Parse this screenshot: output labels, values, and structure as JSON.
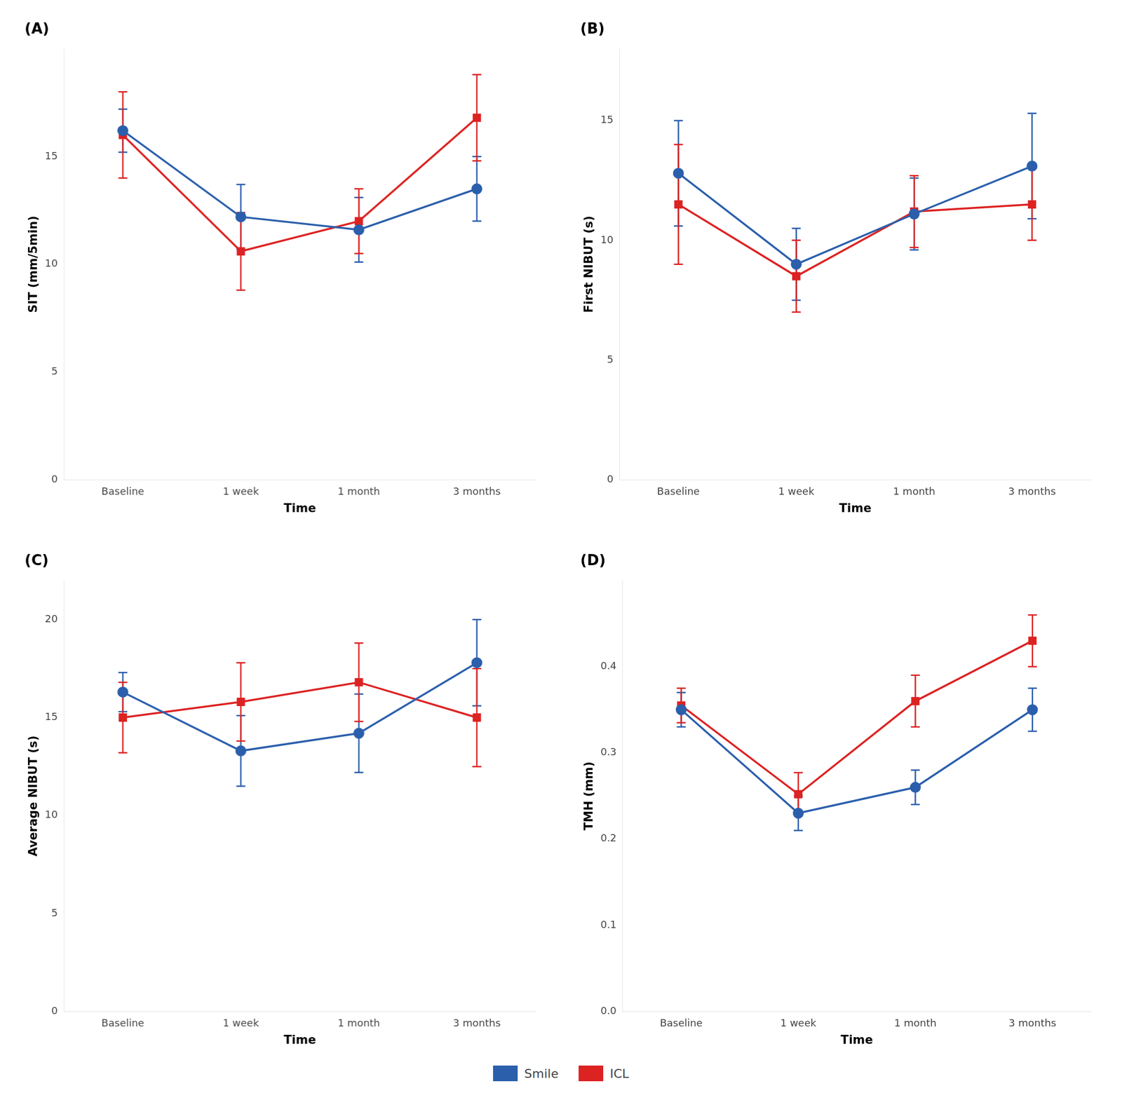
{
  "chart_data": [
    {
      "type": "line",
      "title": "(A)",
      "x_label": "Time",
      "y_label": "SIT (mm/5min)",
      "categories": [
        "Baseline",
        "1 week",
        "1 month",
        "3 months"
      ],
      "series": [
        {
          "name": "Smile",
          "color": "#2B5FAC",
          "marker": "circle",
          "values": [
            16.2,
            12.2,
            11.6,
            13.5
          ],
          "errors": [
            1.0,
            1.5,
            1.5,
            1.5
          ]
        },
        {
          "name": "ICL",
          "color": "#DD2222",
          "marker": "square",
          "values": [
            16.0,
            10.6,
            12.0,
            16.8
          ],
          "errors": [
            2.0,
            1.8,
            1.5,
            2.0
          ]
        }
      ],
      "ylim": [
        0,
        20
      ],
      "yticks": [
        0,
        5,
        10,
        15
      ],
      "grid": false,
      "legend": "bottom"
    },
    {
      "type": "line",
      "title": "(B)",
      "x_label": "Time",
      "y_label": "First NIBUT (s)",
      "categories": [
        "Baseline",
        "1 week",
        "1 month",
        "3 months"
      ],
      "series": [
        {
          "name": "Smile",
          "color": "#2B5FAC",
          "marker": "circle",
          "values": [
            12.8,
            9.0,
            11.1,
            13.1
          ],
          "errors": [
            2.2,
            1.5,
            1.5,
            2.2
          ]
        },
        {
          "name": "ICL",
          "color": "#DD2222",
          "marker": "square",
          "values": [
            11.5,
            8.5,
            11.2,
            11.5
          ],
          "errors": [
            2.5,
            1.5,
            1.5,
            1.5
          ]
        }
      ],
      "ylim": [
        0,
        18
      ],
      "yticks": [
        0,
        5,
        10,
        15
      ],
      "grid": false,
      "legend": "bottom"
    },
    {
      "type": "line",
      "title": "(C)",
      "x_label": "Time",
      "y_label": "Average NIBUT (s)",
      "categories": [
        "Baseline",
        "1 week",
        "1 month",
        "3 months"
      ],
      "series": [
        {
          "name": "Smile",
          "color": "#2B5FAC",
          "marker": "circle",
          "values": [
            16.3,
            13.3,
            14.2,
            17.8
          ],
          "errors": [
            1.0,
            1.8,
            2.0,
            2.2
          ]
        },
        {
          "name": "ICL",
          "color": "#DD2222",
          "marker": "square",
          "values": [
            15.0,
            15.8,
            16.8,
            15.0
          ],
          "errors": [
            1.8,
            2.0,
            2.0,
            2.5
          ]
        }
      ],
      "ylim": [
        0,
        22
      ],
      "yticks": [
        0,
        5,
        10,
        15,
        20
      ],
      "grid": false,
      "legend": "bottom"
    },
    {
      "type": "line",
      "title": "(D)",
      "x_label": "Time",
      "y_label": "TMH (mm)",
      "categories": [
        "Baseline",
        "1 week",
        "1 month",
        "3 months"
      ],
      "series": [
        {
          "name": "Smile",
          "color": "#2B5FAC",
          "marker": "circle",
          "values": [
            0.35,
            0.23,
            0.26,
            0.35
          ],
          "errors": [
            0.02,
            0.02,
            0.02,
            0.025
          ]
        },
        {
          "name": "ICL",
          "color": "#DD2222",
          "marker": "square",
          "values": [
            0.355,
            0.252,
            0.36,
            0.43
          ],
          "errors": [
            0.02,
            0.025,
            0.03,
            0.03
          ]
        }
      ],
      "ylim": [
        0,
        0.5
      ],
      "yticks": [
        {
          "value": 0,
          "label": "0.0"
        },
        0.1,
        0.2,
        0.3,
        0.4
      ],
      "grid": false,
      "legend": "bottom"
    }
  ]
}
